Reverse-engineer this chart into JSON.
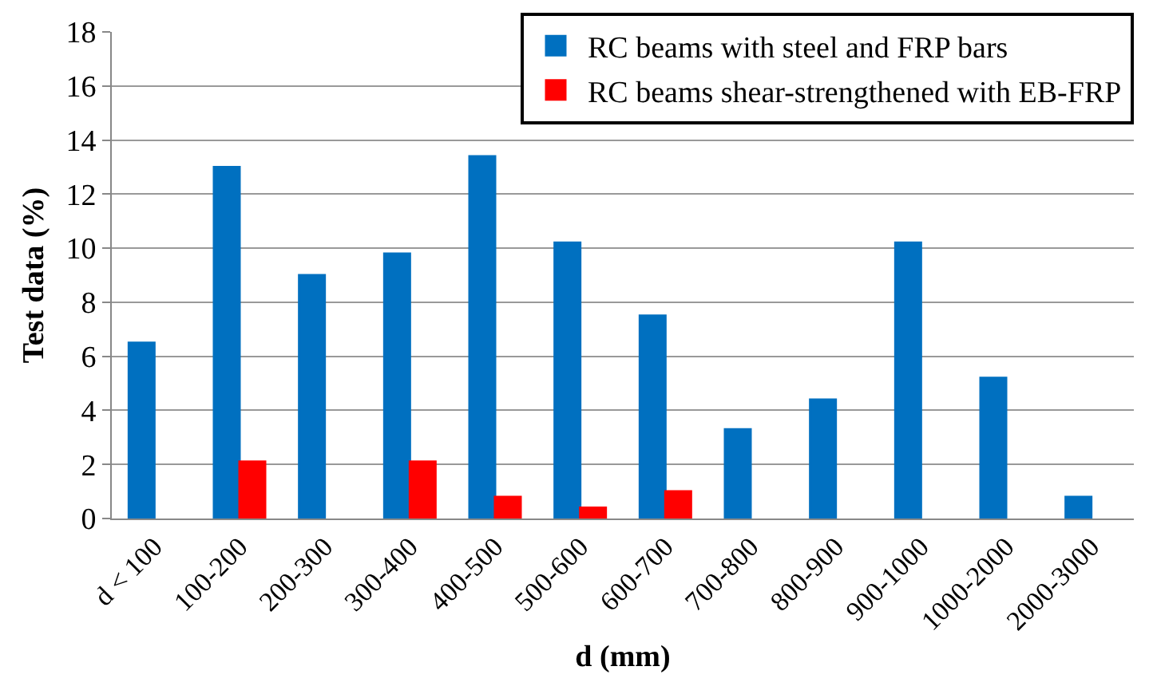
{
  "chart_data": {
    "type": "bar",
    "xlabel": "d (mm)",
    "ylabel": "Test data (%)",
    "categories": [
      "d < 100",
      "100-200",
      "200-300",
      "300-400",
      "400-500",
      "500-600",
      "600-700",
      "700-800",
      "800-900",
      "900-1000",
      "1000-2000",
      "2000-3000"
    ],
    "series": [
      {
        "name": "RC beams with steel and FRP bars",
        "color": "#0070c0",
        "values": [
          6.5,
          13.0,
          9.0,
          9.8,
          13.4,
          10.2,
          7.5,
          3.3,
          4.4,
          10.2,
          5.2,
          0.8
        ]
      },
      {
        "name": "RC beams shear-strengthened with EB-FRP",
        "color": "#ff0000",
        "values": [
          null,
          2.1,
          null,
          2.1,
          0.8,
          0.4,
          1.0,
          null,
          null,
          null,
          null,
          null
        ]
      }
    ],
    "ylim": [
      0,
      18
    ],
    "yticks": [
      0,
      2,
      4,
      6,
      8,
      10,
      12,
      14,
      16,
      18
    ],
    "grid": "y",
    "legend": "top right"
  }
}
